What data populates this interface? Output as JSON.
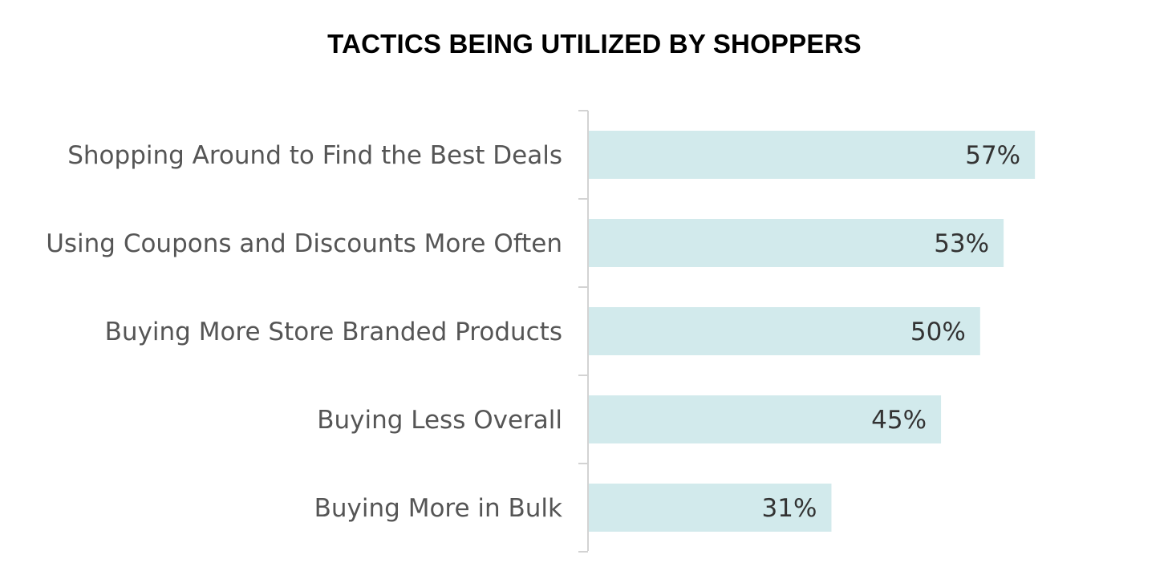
{
  "chart_data": {
    "type": "bar",
    "orientation": "horizontal",
    "title": "TACTICS BEING UTILIZED BY SHOPPERS",
    "categories": [
      "Shopping Around to Find the Best Deals",
      "Using Coupons and Discounts More Often",
      "Buying More Store Branded Products",
      "Buying Less Overall",
      "Buying More in Bulk"
    ],
    "values": [
      57,
      53,
      50,
      45,
      31
    ],
    "value_labels": [
      "57%",
      "53%",
      "50%",
      "45%",
      "31%"
    ],
    "xlim": [
      0,
      74
    ],
    "grid": false,
    "legend": "none",
    "bar_color": "#d2eaec",
    "axis_color": "#d3d3d3"
  }
}
